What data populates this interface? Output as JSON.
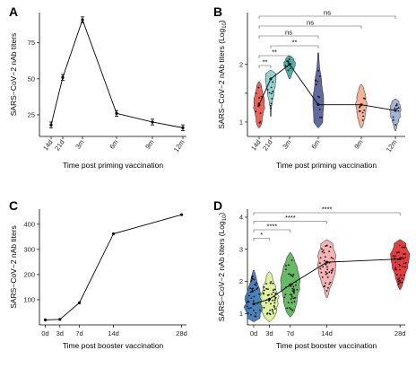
{
  "chart_data": [
    {
      "panel": "A",
      "type": "line",
      "x": [
        "14d",
        "21d",
        "3m",
        "6m",
        "9m",
        "12m"
      ],
      "values": [
        18,
        51,
        91,
        26,
        20,
        16
      ],
      "errors": [
        2,
        2,
        2,
        2,
        2,
        2
      ],
      "yticks": [
        25,
        50,
        75
      ],
      "ylim": [
        10,
        96
      ],
      "xlabel": "Time post priming vaccination",
      "ylabel": "SARS−CoV−2 nAb titers"
    },
    {
      "panel": "B",
      "type": "violin",
      "x": [
        "14d",
        "21d",
        "3m",
        "6m",
        "9m",
        "12m"
      ],
      "medians": [
        1.3,
        1.75,
        2.0,
        1.3,
        1.3,
        1.2
      ],
      "ranges": [
        [
          0.9,
          1.7
        ],
        [
          1.1,
          1.9
        ],
        [
          1.75,
          2.15
        ],
        [
          0.9,
          2.2
        ],
        [
          0.9,
          1.65
        ],
        [
          0.85,
          1.4
        ]
      ],
      "fill_colors": [
        "#e8473b",
        "#7fcac5",
        "#2aa198",
        "#46508f",
        "#f4a582",
        "#92a8d1"
      ],
      "yticks": [
        1,
        1.5,
        2
      ],
      "ytick_labels": [
        "1",
        "",
        "2"
      ],
      "ylim": [
        0.75,
        2.9
      ],
      "xlabel": "Time post priming vaccination",
      "ylabel": "SARS−CoV−2 nAb titers (Log",
      "ylabel_sub": "10",
      "ylabel_end": ")",
      "brackets": [
        {
          "from": "14d",
          "to": "12m",
          "label": "ns"
        },
        {
          "from": "14d",
          "to": "9m",
          "label": "ns"
        },
        {
          "from": "14d",
          "to": "6m",
          "label": "ns"
        },
        {
          "from": "21d",
          "to": "6m",
          "label": "**"
        },
        {
          "from": "14d",
          "to": "3m",
          "label": "**"
        },
        {
          "from": "14d",
          "to": "21d",
          "label": "**"
        }
      ]
    },
    {
      "panel": "C",
      "type": "line",
      "x_labels": [
        "0d",
        "3d",
        "7d",
        "14d",
        "28d"
      ],
      "x_days": [
        0,
        3,
        7,
        14,
        28
      ],
      "values": [
        20,
        22,
        88,
        362,
        438
      ],
      "yticks": [
        100,
        200,
        300,
        400
      ],
      "ylim": [
        0,
        460
      ],
      "xlim": [
        -1.2,
        29
      ],
      "xlabel": "Time post booster vaccination",
      "ylabel": "SARS−CoV−2 nAb titers"
    },
    {
      "panel": "D",
      "type": "violin",
      "x_labels": [
        "0d",
        "3d",
        "7d",
        "14d",
        "28d"
      ],
      "x_days": [
        0,
        3,
        7,
        14,
        28
      ],
      "medians": [
        1.3,
        1.45,
        1.9,
        2.6,
        2.7
      ],
      "ranges": [
        [
          0.75,
          2.35
        ],
        [
          0.75,
          2.3
        ],
        [
          0.9,
          2.9
        ],
        [
          1.5,
          3.3
        ],
        [
          1.75,
          3.3
        ]
      ],
      "fill_colors": [
        "#2b6cb0",
        "#d9ef8b",
        "#4daf4a",
        "#f4a6a6",
        "#e31a1c"
      ],
      "yticks": [
        1,
        2,
        3,
        4
      ],
      "ylim": [
        0.65,
        4.25
      ],
      "xlim": [
        -1.2,
        29
      ],
      "xlabel": "Time post booster vaccination",
      "ylabel": "SARS−CoV−2 nAb titers (Log",
      "ylabel_sub": "10",
      "ylabel_end": ")",
      "brackets": [
        {
          "from": "0d",
          "to": "28d",
          "label": "****"
        },
        {
          "from": "0d",
          "to": "14d",
          "label": "****"
        },
        {
          "from": "0d",
          "to": "7d",
          "label": "****"
        },
        {
          "from": "0d",
          "to": "3d",
          "label": "*"
        }
      ]
    }
  ]
}
